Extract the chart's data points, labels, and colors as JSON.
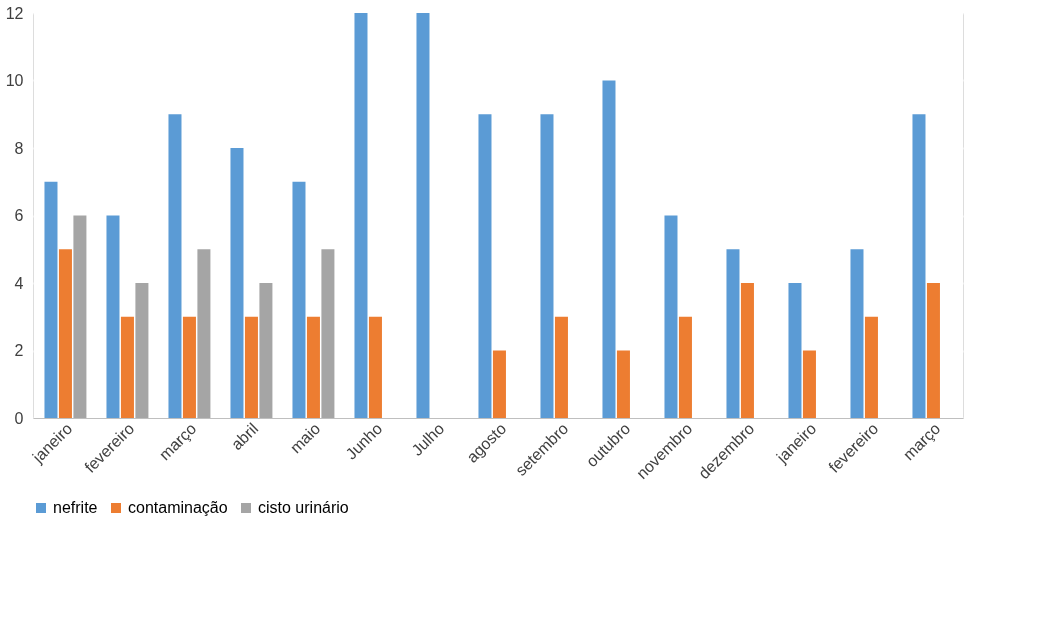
{
  "chart_data": {
    "type": "bar",
    "categories": [
      "janeiro",
      "fevereiro",
      "março",
      "abril",
      "maio",
      "Junho",
      "Julho",
      "agosto",
      "setembro",
      "outubro",
      "novembro",
      "dezembro",
      "janeiro",
      "fevereiro",
      "março"
    ],
    "series": [
      {
        "name": "nefrite",
        "color": "#5b9bd5",
        "values": [
          7,
          6,
          9,
          8,
          7,
          12,
          12,
          9,
          9,
          10,
          6,
          5,
          4,
          5,
          9
        ]
      },
      {
        "name": "contaminação",
        "color": "#ed7d31",
        "values": [
          5,
          3,
          3,
          3,
          3,
          3,
          0,
          2,
          3,
          2,
          3,
          4,
          2,
          3,
          4
        ]
      },
      {
        "name": "cisto urinário",
        "color": "#a5a5a5",
        "values": [
          6,
          4,
          5,
          4,
          5,
          0,
          0,
          0,
          0,
          0,
          0,
          0,
          0,
          0,
          0
        ]
      }
    ],
    "ylim": [
      0,
      12
    ],
    "yticks": [
      0,
      2,
      4,
      6,
      8,
      10,
      12
    ],
    "grid": "y",
    "legend": "bottom"
  }
}
